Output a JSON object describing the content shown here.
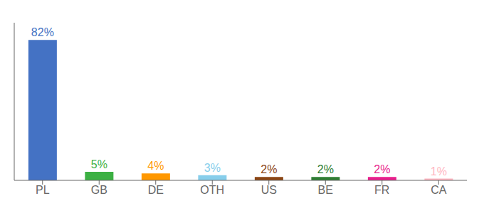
{
  "chart_data": {
    "type": "bar",
    "categories": [
      "PL",
      "GB",
      "DE",
      "OTH",
      "US",
      "BE",
      "FR",
      "CA"
    ],
    "values": [
      82,
      5,
      4,
      3,
      2,
      2,
      2,
      1
    ],
    "value_labels": [
      "82%",
      "5%",
      "4%",
      "3%",
      "2%",
      "2%",
      "2%",
      "1%"
    ],
    "colors": [
      "#4472c4",
      "#3cb043",
      "#ff9800",
      "#87ceeb",
      "#8b4513",
      "#2e7d32",
      "#e91e8c",
      "#ffb6c1"
    ],
    "ylim": [
      0,
      92
    ],
    "data_labels": true,
    "tick_labels": "x",
    "grid": false
  }
}
